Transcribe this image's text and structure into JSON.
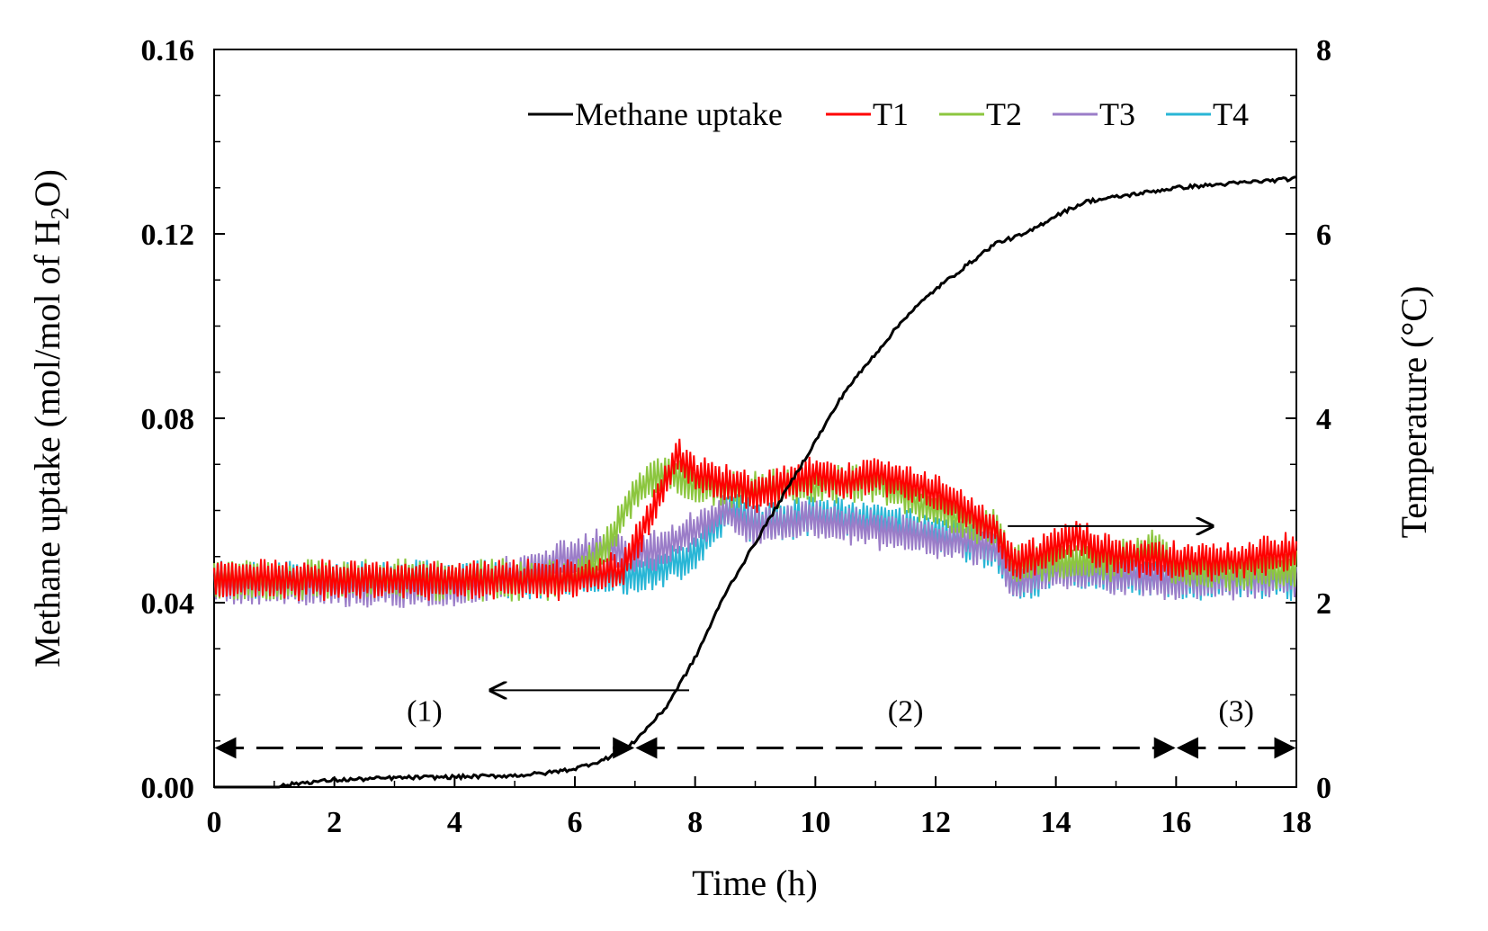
{
  "chart_data": {
    "type": "line",
    "x_axis": {
      "label": "Time (h)",
      "range": [
        0,
        18
      ],
      "ticks": [
        "0",
        "2",
        "4",
        "6",
        "8",
        "10",
        "12",
        "14",
        "16",
        "18"
      ]
    },
    "y_axis_left": {
      "label": "Methane uptake (mol/mol of H₂O)",
      "label_parts": [
        "Methane uptake (mol/mol of H",
        "2",
        "O)"
      ],
      "range": [
        0,
        0.16
      ],
      "ticks": [
        "0.00",
        "0.04",
        "0.08",
        "0.12",
        "0.16"
      ]
    },
    "y_axis_right": {
      "label": "Temperature (°C)",
      "range": [
        0,
        8
      ],
      "ticks": [
        "0",
        "2",
        "4",
        "6",
        "8"
      ]
    },
    "legend_position": "top-right",
    "series": [
      {
        "name": "Methane uptake",
        "axis": "left",
        "color": "#000000",
        "points": [
          [
            0,
            0
          ],
          [
            1,
            0
          ],
          [
            1.5,
            0.001
          ],
          [
            2,
            0.0015
          ],
          [
            3,
            0.002
          ],
          [
            4,
            0.0022
          ],
          [
            5,
            0.0025
          ],
          [
            5.5,
            0.003
          ],
          [
            6,
            0.004
          ],
          [
            6.5,
            0.006
          ],
          [
            7,
            0.01
          ],
          [
            7.5,
            0.017
          ],
          [
            8,
            0.028
          ],
          [
            8.5,
            0.042
          ],
          [
            9,
            0.053
          ],
          [
            9.5,
            0.064
          ],
          [
            10,
            0.075
          ],
          [
            10.5,
            0.086
          ],
          [
            11,
            0.094
          ],
          [
            11.5,
            0.102
          ],
          [
            12,
            0.108
          ],
          [
            12.5,
            0.113
          ],
          [
            13,
            0.118
          ],
          [
            13.5,
            0.12
          ],
          [
            14,
            0.124
          ],
          [
            14.5,
            0.127
          ],
          [
            15,
            0.128
          ],
          [
            15.5,
            0.129
          ],
          [
            16,
            0.13
          ],
          [
            17,
            0.131
          ],
          [
            18,
            0.132
          ]
        ]
      },
      {
        "name": "T1",
        "axis": "right",
        "color": "#ff0000",
        "points": [
          [
            0,
            2.25
          ],
          [
            6,
            2.25
          ],
          [
            6.8,
            2.35
          ],
          [
            7.5,
            3.3
          ],
          [
            7.7,
            3.6
          ],
          [
            8,
            3.4
          ],
          [
            8.5,
            3.3
          ],
          [
            9,
            3.2
          ],
          [
            9.5,
            3.3
          ],
          [
            10,
            3.4
          ],
          [
            10.5,
            3.3
          ],
          [
            11,
            3.4
          ],
          [
            11.5,
            3.3
          ],
          [
            12,
            3.2
          ],
          [
            12.5,
            3.0
          ],
          [
            13,
            2.8
          ],
          [
            13.3,
            2.4
          ],
          [
            14,
            2.6
          ],
          [
            14.3,
            2.7
          ],
          [
            15,
            2.5
          ],
          [
            16,
            2.45
          ],
          [
            17,
            2.45
          ],
          [
            18,
            2.55
          ]
        ]
      },
      {
        "name": "T2",
        "axis": "right",
        "color": "#8cc63f",
        "points": [
          [
            0,
            2.25
          ],
          [
            6,
            2.25
          ],
          [
            6.5,
            2.6
          ],
          [
            7,
            3.2
          ],
          [
            7.5,
            3.4
          ],
          [
            8,
            3.3
          ],
          [
            9,
            3.2
          ],
          [
            10,
            3.3
          ],
          [
            11,
            3.3
          ],
          [
            12,
            3.0
          ],
          [
            12.5,
            2.9
          ],
          [
            13,
            2.8
          ],
          [
            13.3,
            2.4
          ],
          [
            14,
            2.45
          ],
          [
            15,
            2.45
          ],
          [
            15.6,
            2.6
          ],
          [
            16,
            2.35
          ],
          [
            17,
            2.35
          ],
          [
            18,
            2.35
          ]
        ]
      },
      {
        "name": "T3",
        "axis": "right",
        "color": "#9b7dc8",
        "points": [
          [
            0,
            2.2
          ],
          [
            4,
            2.15
          ],
          [
            5,
            2.3
          ],
          [
            5.5,
            2.4
          ],
          [
            6,
            2.5
          ],
          [
            6.5,
            2.6
          ],
          [
            7,
            2.5
          ],
          [
            7.5,
            2.6
          ],
          [
            8,
            2.8
          ],
          [
            8.5,
            3.0
          ],
          [
            9,
            2.8
          ],
          [
            10,
            2.9
          ],
          [
            11,
            2.8
          ],
          [
            12,
            2.7
          ],
          [
            13,
            2.6
          ],
          [
            13.3,
            2.2
          ],
          [
            14,
            2.35
          ],
          [
            15,
            2.3
          ],
          [
            16,
            2.25
          ],
          [
            17,
            2.25
          ],
          [
            18,
            2.25
          ]
        ]
      },
      {
        "name": "T4",
        "axis": "right",
        "color": "#29b6d6",
        "points": [
          [
            0,
            2.25
          ],
          [
            6,
            2.25
          ],
          [
            7,
            2.3
          ],
          [
            8,
            2.5
          ],
          [
            8.3,
            2.8
          ],
          [
            8.6,
            3.05
          ],
          [
            9,
            2.85
          ],
          [
            10,
            2.95
          ],
          [
            11,
            2.9
          ],
          [
            12,
            2.75
          ],
          [
            13,
            2.55
          ],
          [
            13.3,
            2.2
          ],
          [
            14,
            2.35
          ],
          [
            15,
            2.3
          ],
          [
            16,
            2.25
          ],
          [
            17,
            2.25
          ],
          [
            18,
            2.25
          ]
        ]
      }
    ],
    "regions": [
      {
        "label": "(1)",
        "from": 0,
        "to": 7
      },
      {
        "label": "(2)",
        "from": 7,
        "to": 16
      },
      {
        "label": "(3)",
        "from": 16,
        "to": 18
      }
    ]
  }
}
